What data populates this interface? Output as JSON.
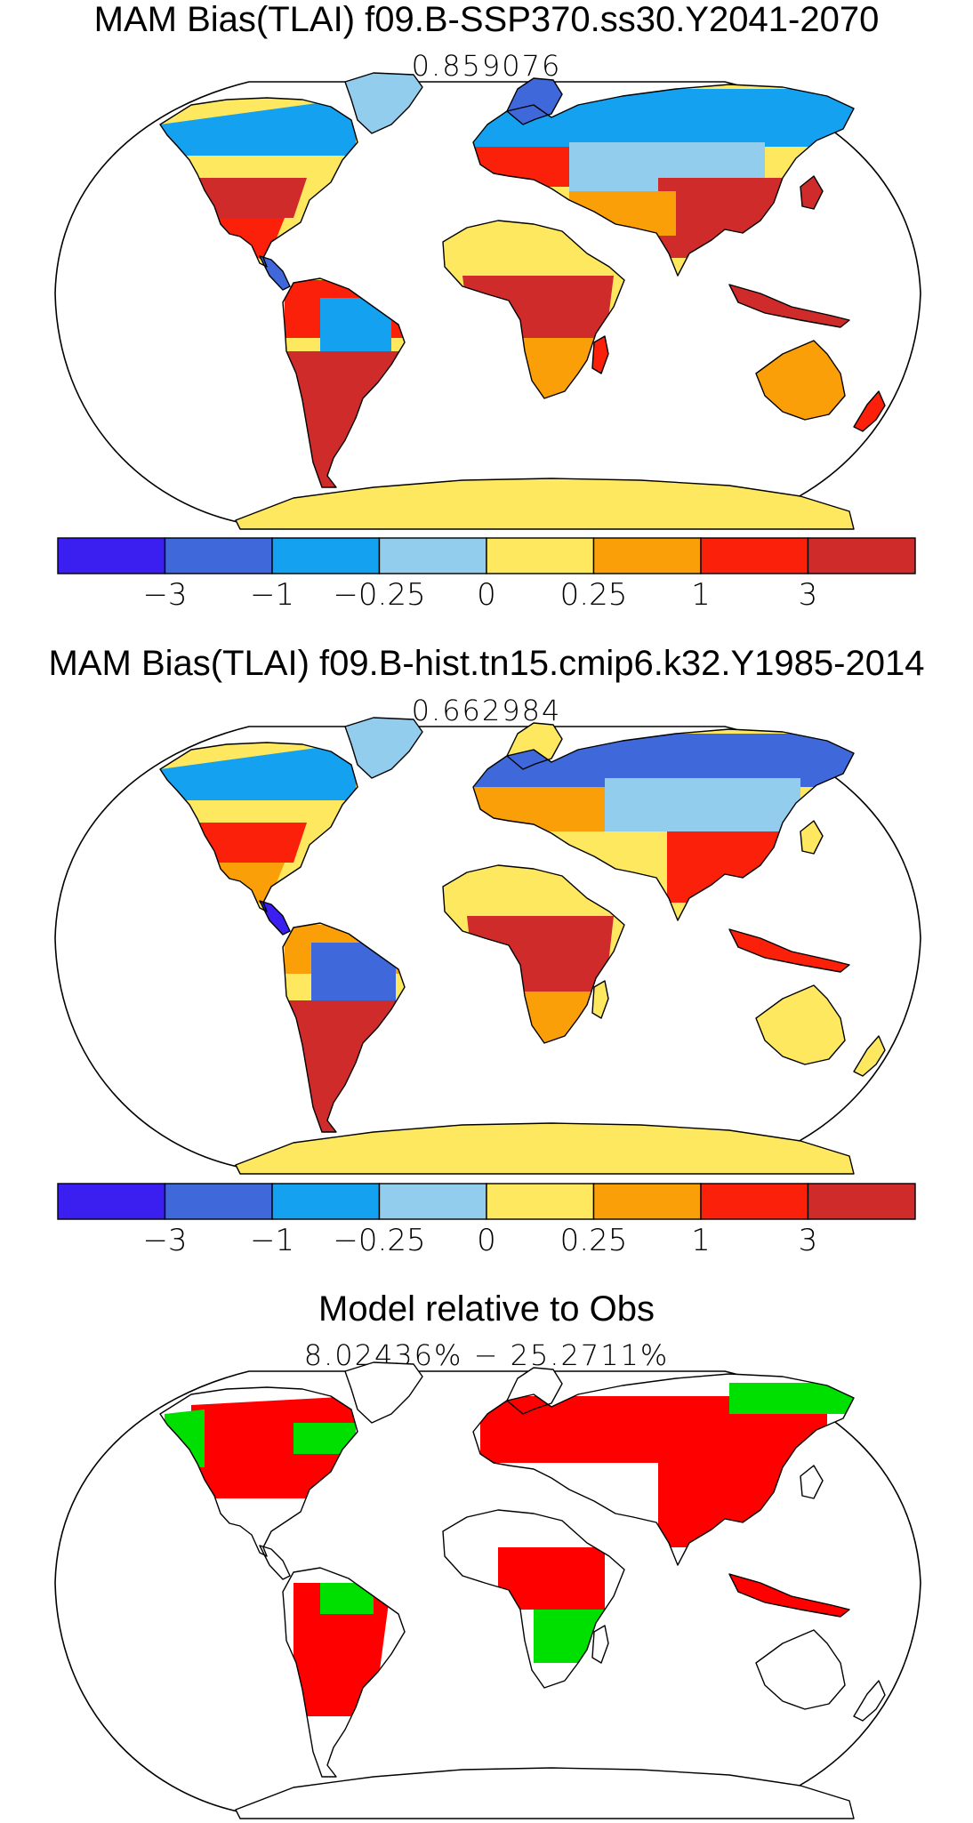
{
  "panels": [
    {
      "title": "MAM Bias(TLAI) f09.B-SSP370.ss30.Y2041-2070",
      "stat": "0.859076"
    },
    {
      "title": "MAM Bias(TLAI) f09.B-hist.tn15.cmip6.k32.Y1985-2014",
      "stat": "0.662984"
    },
    {
      "title": "Model relative to Obs",
      "stat": "8.02436% − 25.2711%"
    }
  ],
  "colorbar": {
    "colors": [
      "#3a1ff0",
      "#3f68da",
      "#14a2f0",
      "#93cdee",
      "#fde860",
      "#fb9f08",
      "#fa200a",
      "#d02b2b"
    ],
    "labels": [
      "−3",
      "−1",
      "−0.25",
      "0",
      "0.25",
      "1",
      "3"
    ]
  },
  "legend_colors": {
    "worse": "#ff0000",
    "better": "#00e000"
  }
}
